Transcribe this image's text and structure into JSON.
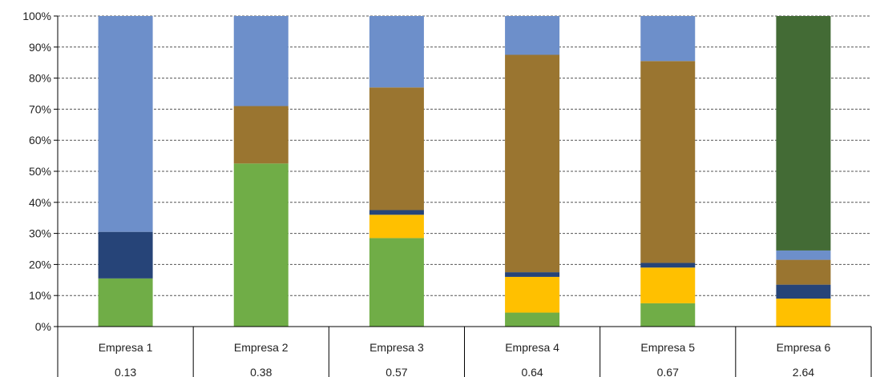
{
  "chart_data": {
    "type": "bar",
    "stacked": true,
    "normalized": true,
    "categories": [
      "Empresa 1",
      "Empresa 2",
      "Empresa 3",
      "Empresa 4",
      "Empresa 5",
      "Empresa 6"
    ],
    "category_values": [
      "0.13",
      "0.38",
      "0.57",
      "0.64",
      "0.67",
      "2.64"
    ],
    "series": [
      {
        "color": "#70ad47",
        "values": [
          15.5,
          52.5,
          28.5,
          4.5,
          7.5,
          0
        ]
      },
      {
        "color": "#ffc000",
        "values": [
          0,
          0,
          7.5,
          11.5,
          11.5,
          9
        ]
      },
      {
        "color": "#264478",
        "values": [
          15,
          0,
          1.5,
          1.5,
          1.5,
          4.5
        ]
      },
      {
        "color": "#9a7530",
        "values": [
          0,
          18.5,
          39.5,
          70,
          65,
          8
        ]
      },
      {
        "color": "#6d8fca",
        "values": [
          69.5,
          29,
          23,
          12.5,
          14.5,
          3
        ]
      },
      {
        "color": "#436b35",
        "values": [
          0,
          0,
          0,
          0,
          0,
          75.5
        ]
      }
    ],
    "yticks": [
      "0%",
      "10%",
      "20%",
      "30%",
      "40%",
      "50%",
      "60%",
      "70%",
      "80%",
      "90%",
      "100%"
    ],
    "ylim": [
      0,
      100
    ],
    "grid": true,
    "legend": "none"
  }
}
